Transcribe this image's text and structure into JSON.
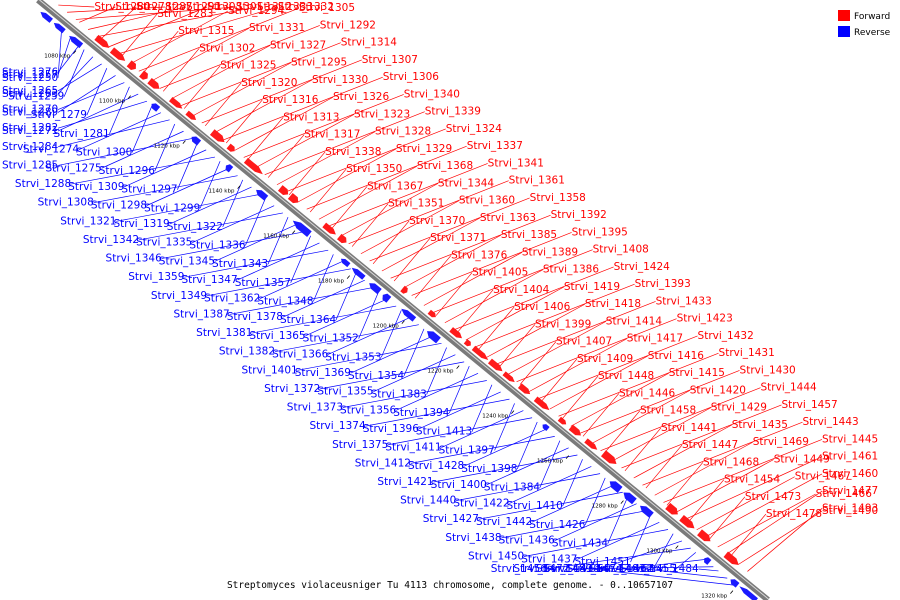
{
  "caption": "Streptomyces violaceusniger Tu 4113 chromosome, complete genome. - 0..10657107",
  "legend": [
    {
      "label": "Forward",
      "color": "#ff0000"
    },
    {
      "label": "Reverse",
      "color": "#0000ff"
    }
  ],
  "axis_ticks": [
    "1080 kbp",
    "1100 kbp",
    "1120 kbp",
    "1140 kbp",
    "1160 kbp",
    "1180 kbp",
    "1200 kbp",
    "1220 kbp",
    "1240 kbp",
    "1260 kbp",
    "1280 kbp",
    "1300 kbp",
    "1320 kbp"
  ],
  "forward_labels": [
    "Strvi_1280",
    "Strvi_1291",
    "Strvi_1312",
    "Strvi_1278",
    "Strvi_1303",
    "Strvi_1333",
    "Strvi_1287",
    "Strvi_1301",
    "Strvi_1332",
    "Strvi_1283",
    "Strvi_1294",
    "Strvi_1305",
    "Strvi_1315",
    "Strvi_1331",
    "Strvi_1292",
    "Strvi_1302",
    "Strvi_1327",
    "Strvi_1314",
    "Strvi_1325",
    "Strvi_1295",
    "Strvi_1307",
    "Strvi_1320",
    "Strvi_1330",
    "Strvi_1306",
    "Strvi_1316",
    "Strvi_1326",
    "Strvi_1340",
    "Strvi_1313",
    "Strvi_1323",
    "Strvi_1339",
    "Strvi_1317",
    "Strvi_1328",
    "Strvi_1324",
    "Strvi_1338",
    "Strvi_1329",
    "Strvi_1337",
    "Strvi_1350",
    "Strvi_1368",
    "Strvi_1341",
    "Strvi_1367",
    "Strvi_1344",
    "Strvi_1361",
    "Strvi_1351",
    "Strvi_1360",
    "Strvi_1358",
    "Strvi_1370",
    "Strvi_1363",
    "Strvi_1392",
    "Strvi_1371",
    "Strvi_1385",
    "Strvi_1395",
    "Strvi_1376",
    "Strvi_1389",
    "Strvi_1408",
    "Strvi_1405",
    "Strvi_1386",
    "Strvi_1424",
    "Strvi_1404",
    "Strvi_1419",
    "Strvi_1393",
    "Strvi_1406",
    "Strvi_1418",
    "Strvi_1433",
    "Strvi_1399",
    "Strvi_1414",
    "Strvi_1423",
    "Strvi_1407",
    "Strvi_1417",
    "Strvi_1432",
    "Strvi_1409",
    "Strvi_1416",
    "Strvi_1431",
    "Strvi_1448",
    "Strvi_1415",
    "Strvi_1430",
    "Strvi_1446",
    "Strvi_1420",
    "Strvi_1444",
    "Strvi_1458",
    "Strvi_1429",
    "Strvi_1457",
    "Strvi_1441",
    "Strvi_1435",
    "Strvi_1443",
    "Strvi_1447",
    "Strvi_1469",
    "Strvi_1445",
    "Strvi_1468",
    "Strvi_1449",
    "Strvi_1461",
    "Strvi_1454",
    "Strvi_1467",
    "Strvi_1460",
    "Strvi_1473",
    "Strvi_1466",
    "Strvi_1477",
    "Strvi_1478",
    "Strvi_1490",
    "Strvi_1493"
  ],
  "reverse_labels": [
    "Strvi_1250",
    "Strvi_1257",
    "Strvi_1276",
    "Strvi_1259",
    "Strvi_1263",
    "Strvi_1265",
    "Strvi_1279",
    "Strvi_1289",
    "Strvi_1270",
    "Strvi_1281",
    "Strvi_1271",
    "Strvi_1282",
    "Strvi_1300",
    "Strvi_1274",
    "Strvi_1284",
    "Strvi_1296",
    "Strvi_1275",
    "Strvi_1285",
    "Strvi_1297",
    "Strvi_1309",
    "Strvi_1288",
    "Strvi_1299",
    "Strvi_1298",
    "Strvi_1308",
    "Strvi_1322",
    "Strvi_1319",
    "Strvi_1321",
    "Strvi_1336",
    "Strvi_1335",
    "Strvi_1342",
    "Strvi_1343",
    "Strvi_1345",
    "Strvi_1346",
    "Strvi_1357",
    "Strvi_1347",
    "Strvi_1359",
    "Strvi_1348",
    "Strvi_1362",
    "Strvi_1349",
    "Strvi_1364",
    "Strvi_1378",
    "Strvi_1387",
    "Strvi_1352",
    "Strvi_1365",
    "Strvi_1381",
    "Strvi_1353",
    "Strvi_1366",
    "Strvi_1382",
    "Strvi_1354",
    "Strvi_1369",
    "Strvi_1401",
    "Strvi_1383",
    "Strvi_1355",
    "Strvi_1372",
    "Strvi_1394",
    "Strvi_1356",
    "Strvi_1373",
    "Strvi_1413",
    "Strvi_1396",
    "Strvi_1374",
    "Strvi_1397",
    "Strvi_1411",
    "Strvi_1375",
    "Strvi_1398",
    "Strvi_1428",
    "Strvi_1412",
    "Strvi_1384",
    "Strvi_1400",
    "Strvi_1421",
    "Strvi_1410",
    "Strvi_1422",
    "Strvi_1440",
    "Strvi_1426",
    "Strvi_1442",
    "Strvi_1427",
    "Strvi_1434",
    "Strvi_1436",
    "Strvi_1438",
    "Strvi_1451",
    "Strvi_1437",
    "Strvi_1450",
    "Strvi_1462",
    "Strvi_1439",
    "Strvi_1456",
    "Strvi_1455",
    "Strvi_1474",
    "Strvi_1472",
    "Strvi_1484",
    "Strvi_1483",
    "Strvi_1489"
  ]
}
